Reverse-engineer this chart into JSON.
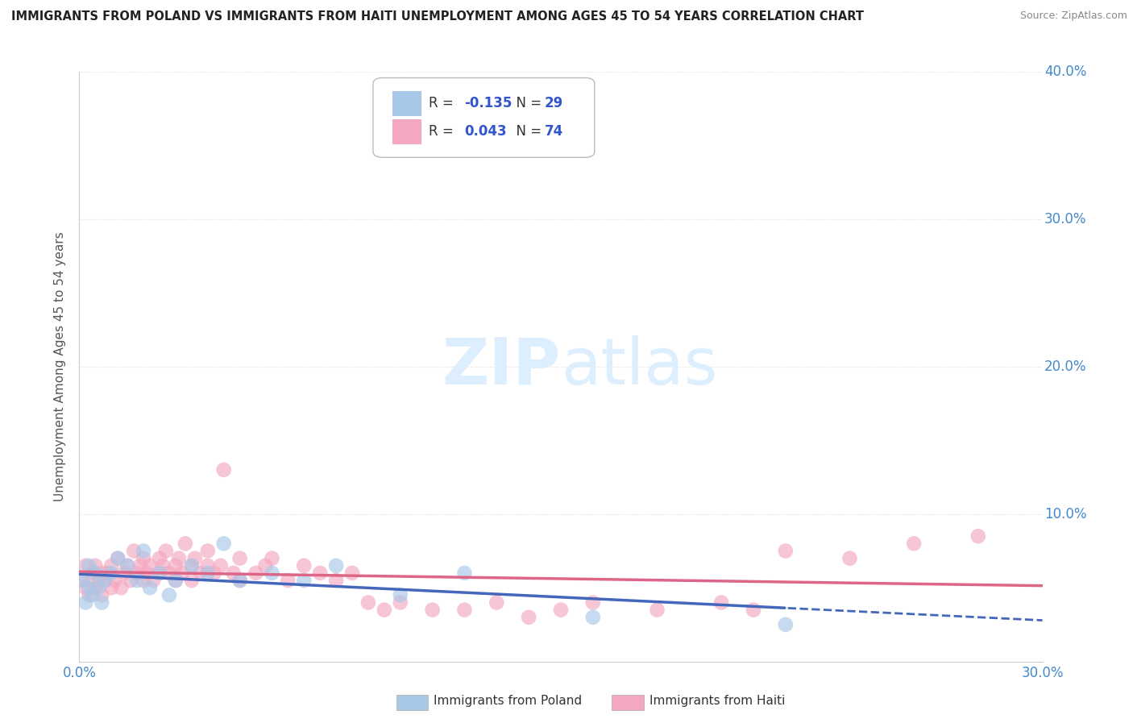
{
  "title": "IMMIGRANTS FROM POLAND VS IMMIGRANTS FROM HAITI UNEMPLOYMENT AMONG AGES 45 TO 54 YEARS CORRELATION CHART",
  "source": "Source: ZipAtlas.com",
  "ylabel": "Unemployment Among Ages 45 to 54 years",
  "xlim": [
    0.0,
    0.3
  ],
  "ylim": [
    0.0,
    0.4
  ],
  "legend_poland": "Immigrants from Poland",
  "legend_haiti": "Immigrants from Haiti",
  "R_poland": -0.135,
  "N_poland": 29,
  "R_haiti": 0.043,
  "N_haiti": 74,
  "color_poland": "#A8C8E8",
  "color_haiti": "#F4A8C0",
  "line_color_poland": "#4466BB",
  "line_color_haiti": "#DD6688",
  "value_color": "#3355CC",
  "poland_x": [
    0.001,
    0.002,
    0.003,
    0.003,
    0.004,
    0.005,
    0.006,
    0.007,
    0.008,
    0.01,
    0.012,
    0.015,
    0.018,
    0.02,
    0.022,
    0.025,
    0.028,
    0.03,
    0.035,
    0.04,
    0.045,
    0.05,
    0.06,
    0.07,
    0.08,
    0.1,
    0.12,
    0.16,
    0.22
  ],
  "poland_y": [
    0.055,
    0.04,
    0.05,
    0.065,
    0.045,
    0.06,
    0.05,
    0.04,
    0.055,
    0.06,
    0.07,
    0.065,
    0.055,
    0.075,
    0.05,
    0.06,
    0.045,
    0.055,
    0.065,
    0.06,
    0.08,
    0.055,
    0.06,
    0.055,
    0.065,
    0.045,
    0.06,
    0.03,
    0.025
  ],
  "haiti_x": [
    0.001,
    0.002,
    0.002,
    0.003,
    0.004,
    0.005,
    0.005,
    0.006,
    0.007,
    0.007,
    0.008,
    0.009,
    0.01,
    0.01,
    0.011,
    0.012,
    0.013,
    0.014,
    0.015,
    0.016,
    0.017,
    0.018,
    0.019,
    0.02,
    0.02,
    0.021,
    0.022,
    0.023,
    0.025,
    0.025,
    0.026,
    0.027,
    0.028,
    0.03,
    0.03,
    0.031,
    0.032,
    0.033,
    0.035,
    0.035,
    0.036,
    0.038,
    0.04,
    0.04,
    0.042,
    0.044,
    0.045,
    0.048,
    0.05,
    0.05,
    0.055,
    0.058,
    0.06,
    0.065,
    0.07,
    0.075,
    0.08,
    0.085,
    0.09,
    0.095,
    0.1,
    0.11,
    0.12,
    0.13,
    0.14,
    0.15,
    0.16,
    0.18,
    0.2,
    0.21,
    0.22,
    0.24,
    0.26,
    0.28
  ],
  "haiti_y": [
    0.055,
    0.05,
    0.065,
    0.045,
    0.06,
    0.05,
    0.065,
    0.055,
    0.06,
    0.045,
    0.055,
    0.06,
    0.05,
    0.065,
    0.055,
    0.07,
    0.05,
    0.06,
    0.065,
    0.055,
    0.075,
    0.06,
    0.065,
    0.055,
    0.07,
    0.06,
    0.065,
    0.055,
    0.07,
    0.06,
    0.065,
    0.075,
    0.06,
    0.065,
    0.055,
    0.07,
    0.06,
    0.08,
    0.065,
    0.055,
    0.07,
    0.06,
    0.065,
    0.075,
    0.06,
    0.065,
    0.13,
    0.06,
    0.07,
    0.055,
    0.06,
    0.065,
    0.07,
    0.055,
    0.065,
    0.06,
    0.055,
    0.06,
    0.04,
    0.035,
    0.04,
    0.035,
    0.035,
    0.04,
    0.03,
    0.035,
    0.04,
    0.035,
    0.04,
    0.035,
    0.075,
    0.07,
    0.08,
    0.085
  ],
  "tick_label_color": "#4488CC",
  "grid_color": "#DDDDDD",
  "spine_color": "#CCCCCC"
}
